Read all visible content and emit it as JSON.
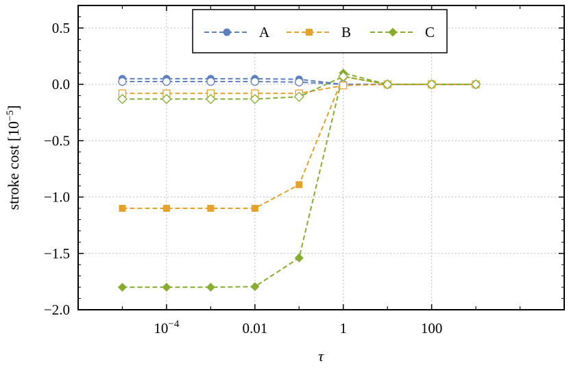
{
  "chart_data": {
    "type": "line",
    "xlabel": "τ",
    "ylabel": "stroke cost [10",
    "ylabel_exponent": "−5",
    "ylabel_close": "]",
    "x_scale": "log",
    "xlim": [
      1e-06,
      100000
    ],
    "ylim": [
      -2.0,
      0.7
    ],
    "grid": true,
    "legend_position": "top-center",
    "x_ticks": [
      {
        "value": 0.0001,
        "base": "10",
        "exp": "−4"
      },
      {
        "value": 0.01,
        "label": "0.01"
      },
      {
        "value": 1,
        "label": "1"
      },
      {
        "value": 100,
        "label": "100"
      }
    ],
    "y_ticks": [
      {
        "value": 0.5,
        "label": "0.5"
      },
      {
        "value": 0.0,
        "label": "0.0"
      },
      {
        "value": -0.5,
        "label": "−0.5"
      },
      {
        "value": -1.0,
        "label": "−1.0"
      },
      {
        "value": -1.5,
        "label": "−1.5"
      },
      {
        "value": -2.0,
        "label": "−2.0"
      }
    ],
    "x": [
      1e-05,
      0.0001,
      0.001,
      0.01,
      0.1,
      1,
      10,
      100,
      1000
    ],
    "series": [
      {
        "name": "A",
        "color": "#5b7fbf",
        "marker": "circle",
        "legend": true,
        "values": [
          0.05,
          0.05,
          0.05,
          0.05,
          0.045,
          0.0,
          0.0,
          0.0,
          0.0
        ]
      },
      {
        "name": "B",
        "color": "#e5a12a",
        "marker": "square",
        "legend": true,
        "values": [
          -1.1,
          -1.1,
          -1.1,
          -1.1,
          -0.89,
          0.07,
          0.0,
          0.0,
          0.0
        ]
      },
      {
        "name": "C",
        "color": "#86ad2f",
        "marker": "diamond",
        "legend": true,
        "values": [
          -1.8,
          -1.8,
          -1.8,
          -1.795,
          -1.54,
          0.1,
          0.0,
          0.0,
          0.0
        ]
      },
      {
        "color": "#5b7fbf",
        "marker": "circle-open",
        "legend": false,
        "values": [
          0.025,
          0.025,
          0.025,
          0.025,
          0.02,
          0.0,
          0.0,
          0.0,
          0.0
        ]
      },
      {
        "color": "#e5a12a",
        "marker": "square-open",
        "legend": false,
        "values": [
          -0.08,
          -0.08,
          -0.08,
          -0.08,
          -0.08,
          -0.01,
          0.0,
          0.0,
          0.0
        ]
      },
      {
        "color": "#86ad2f",
        "marker": "diamond-open",
        "legend": false,
        "values": [
          -0.13,
          -0.13,
          -0.13,
          -0.13,
          -0.11,
          0.07,
          0.0,
          0.0,
          0.0
        ]
      }
    ]
  }
}
